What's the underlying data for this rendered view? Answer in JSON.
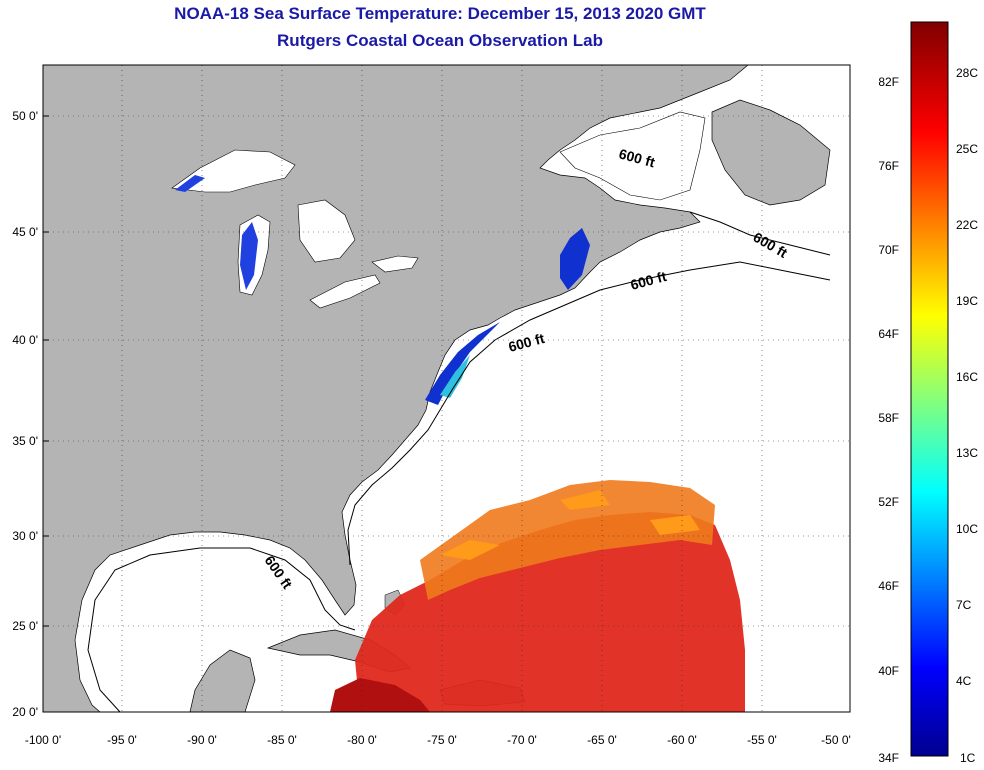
{
  "title_line1": "NOAA-18 Sea Surface Temperature:  December 15, 2013 2020 GMT",
  "title_line2": "Rutgers Coastal Ocean Observation Lab",
  "lat_labels": [
    "50 0'",
    "45 0'",
    "40 0'",
    "35 0'",
    "30 0'",
    "25 0'",
    "20 0'"
  ],
  "lon_labels": [
    "-100 0'",
    "-95 0'",
    "-90 0'",
    "-85 0'",
    "-80 0'",
    "-75 0'",
    "-70 0'",
    "-65 0'",
    "-60 0'",
    "-55 0'",
    "-50 0'"
  ],
  "depth_label": "600 ft",
  "colorbar": {
    "fahrenheit_labels": [
      "82F",
      "76F",
      "70F",
      "64F",
      "58F",
      "52F",
      "46F",
      "40F",
      "34F"
    ],
    "celsius_labels": [
      "28C",
      "25C",
      "22C",
      "19C",
      "16C",
      "13C",
      "10C",
      "7C",
      "4C",
      "1C"
    ]
  },
  "colors": {
    "land": "#b4b4b4",
    "ocean": "#ffffff",
    "title": "#1a1aa6",
    "warm": "#e0281c",
    "cold": "#1030d0"
  }
}
